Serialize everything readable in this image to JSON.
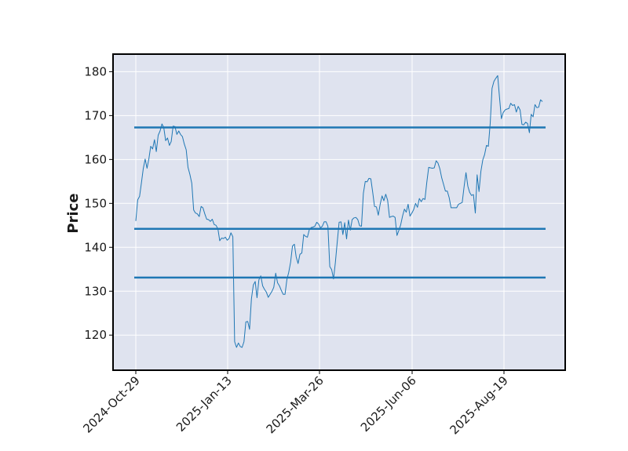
{
  "chart_data": {
    "type": "line",
    "title": "",
    "xlabel": "",
    "ylabel": "Price",
    "ylim": [
      112,
      184
    ],
    "yticks": [
      120,
      130,
      140,
      150,
      160,
      170,
      180
    ],
    "xticks": [
      "2024-Oct-29",
      "2025-Jan-13",
      "2025-Mar-26",
      "2025-Jun-06",
      "2025-Aug-19"
    ],
    "grid": true,
    "legend": "none",
    "background_color": "#dfe3ef",
    "line_color": "#1f77b4",
    "series": [
      {
        "values": [
          146.0,
          150.8,
          151.6,
          154.6,
          157.9,
          160.1,
          158.0,
          160.1,
          163.0,
          162.4,
          164.5,
          161.8,
          165.5,
          166.5,
          168.1,
          167.3,
          164.3,
          164.9,
          163.2,
          164.1,
          167.6,
          167.5,
          165.7,
          166.5,
          165.7,
          165.2,
          163.5,
          162.2,
          158.2,
          156.6,
          154.6,
          148.5,
          147.8,
          147.6,
          147.0,
          149.3,
          149.0,
          147.6,
          146.4,
          146.3,
          145.9,
          146.4,
          145.2,
          145.0,
          144.2,
          141.5,
          142.1,
          142.0,
          142.3,
          141.6,
          142.0,
          143.3,
          142.4,
          118.5,
          117.2,
          118.2,
          117.4,
          117.2,
          118.5,
          123.0,
          123.1,
          121.3,
          128.3,
          131.4,
          132.2,
          128.5,
          132.6,
          133.5,
          131.2,
          130.4,
          129.8,
          128.6,
          129.3,
          130.0,
          130.9,
          134.1,
          131.9,
          131.2,
          130.2,
          129.3,
          129.3,
          132.7,
          134.3,
          136.6,
          140.3,
          140.7,
          137.8,
          136.3,
          138.4,
          138.7,
          142.9,
          142.5,
          142.3,
          144.0,
          144.5,
          144.6,
          144.8,
          145.7,
          145.3,
          144.4,
          144.8,
          145.8,
          145.8,
          144.8,
          135.6,
          134.9,
          132.8,
          136.5,
          141.2,
          145.7,
          145.8,
          142.9,
          145.6,
          141.9,
          146.2,
          143.9,
          146.3,
          146.7,
          146.8,
          146.3,
          144.9,
          144.8,
          152.3,
          155.0,
          154.9,
          155.7,
          155.6,
          152.5,
          149.3,
          149.2,
          147.3,
          149.8,
          151.7,
          150.6,
          152.1,
          150.7,
          146.8,
          147.0,
          147.1,
          146.8,
          142.7,
          143.8,
          145.1,
          147.1,
          148.7,
          148.0,
          149.8,
          147.1,
          147.8,
          148.6,
          150.0,
          149.1,
          151.1,
          150.4,
          151.1,
          150.9,
          154.8,
          158.2,
          158.1,
          158.0,
          158.1,
          159.7,
          159.2,
          157.9,
          155.8,
          154.3,
          152.8,
          152.8,
          151.3,
          149.0,
          149.0,
          149.0,
          149.0,
          149.8,
          150.0,
          150.2,
          153.8,
          157.0,
          153.9,
          152.5,
          151.8,
          152.0,
          147.8,
          156.5,
          152.7,
          157.3,
          159.9,
          161.1,
          163.2,
          163.0,
          168.3,
          176.2,
          177.8,
          178.5,
          179.1,
          174.2,
          169.3,
          170.7,
          171.3,
          171.5,
          171.6,
          172.8,
          172.3,
          172.5,
          170.8,
          172.1,
          171.3,
          168.0,
          167.9,
          168.5,
          168.2,
          166.1,
          170.3,
          169.7,
          172.5,
          171.8,
          171.9,
          173.6,
          173.2
        ],
        "horizontal_lines": [
          167.3,
          144.2,
          133.1
        ]
      }
    ]
  }
}
